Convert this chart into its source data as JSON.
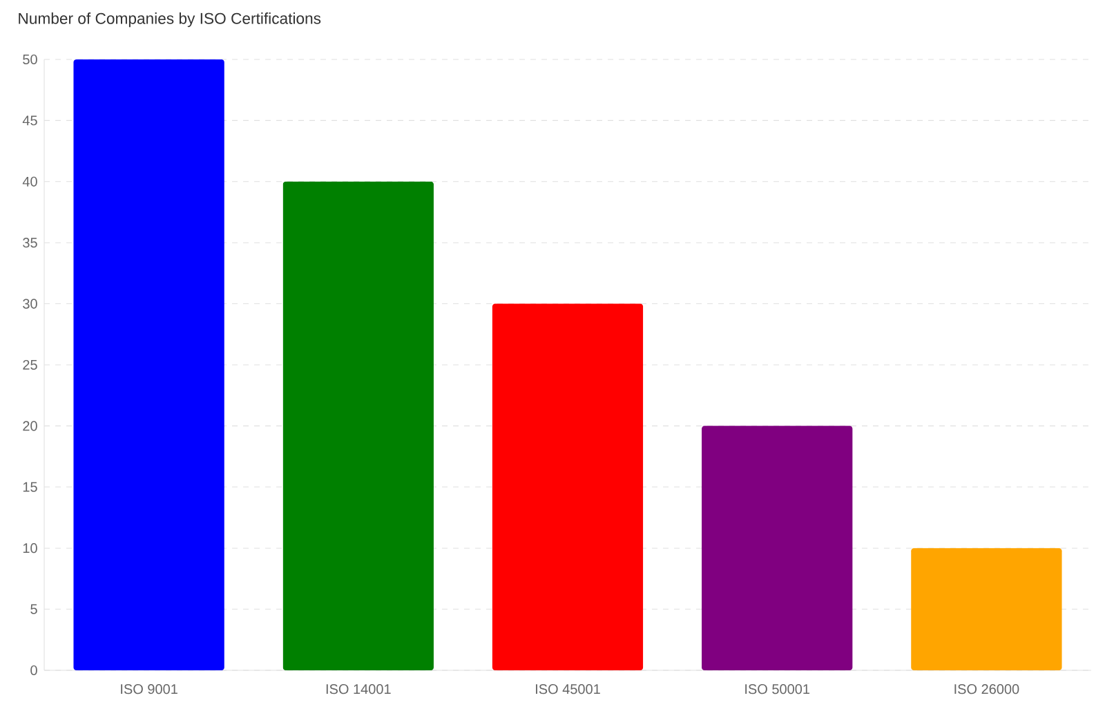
{
  "chart_data": {
    "type": "bar",
    "title": "Number of Companies by ISO Certifications",
    "categories": [
      "ISO 9001",
      "ISO 14001",
      "ISO 45001",
      "ISO 50001",
      "ISO 26000"
    ],
    "values": [
      50,
      40,
      30,
      20,
      10
    ],
    "colors": [
      "#0000ff",
      "#008000",
      "#ff0000",
      "#800080",
      "#ffa500"
    ],
    "ylim": [
      0,
      50
    ],
    "yticks": [
      0,
      5,
      10,
      15,
      20,
      25,
      30,
      35,
      40,
      45,
      50
    ],
    "grid": "y"
  }
}
